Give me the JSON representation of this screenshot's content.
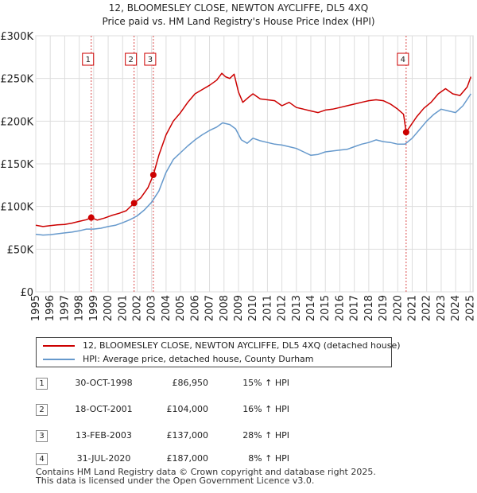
{
  "chart_data": {
    "type": "line",
    "title": "12, BLOOMESLEY CLOSE, NEWTON AYCLIFFE, DL5 4XQ",
    "subtitle": "Price paid vs. HM Land Registry's House Price Index (HPI)",
    "xlim": [
      1995,
      2025.2
    ],
    "ylim": [
      0,
      300000
    ],
    "x_ticks": [
      "1995",
      "1996",
      "1997",
      "1998",
      "1999",
      "2000",
      "2001",
      "2002",
      "2003",
      "2004",
      "2005",
      "2006",
      "2007",
      "2008",
      "2009",
      "2010",
      "2011",
      "2012",
      "2013",
      "2014",
      "2015",
      "2016",
      "2017",
      "2018",
      "2019",
      "2020",
      "2021",
      "2022",
      "2023",
      "2024",
      "2025"
    ],
    "y_ticks": [
      {
        "value": 0,
        "label": "£0"
      },
      {
        "value": 50000,
        "label": "£50K"
      },
      {
        "value": 100000,
        "label": "£100K"
      },
      {
        "value": 150000,
        "label": "£150K"
      },
      {
        "value": 200000,
        "label": "£200K"
      },
      {
        "value": 250000,
        "label": "£250K"
      },
      {
        "value": 300000,
        "label": "£300K"
      }
    ],
    "grid": true,
    "colors": {
      "property": "#cc0000",
      "hpi": "#6699cc",
      "marker_line": "#cc0000",
      "plot_bg": "#ffffff"
    },
    "series": [
      {
        "name": "12, BLOOMESLEY CLOSE, NEWTON AYCLIFFE, DL5 4XQ (detached house)",
        "color": "#cc0000",
        "points": [
          [
            1995.0,
            78000
          ],
          [
            1995.5,
            76500
          ],
          [
            1996.0,
            77500
          ],
          [
            1996.5,
            78500
          ],
          [
            1997.0,
            79000
          ],
          [
            1997.5,
            80500
          ],
          [
            1998.0,
            82500
          ],
          [
            1998.5,
            84500
          ],
          [
            1998.83,
            86950
          ],
          [
            1999.25,
            84000
          ],
          [
            1999.75,
            86500
          ],
          [
            2000.25,
            89500
          ],
          [
            2000.75,
            92000
          ],
          [
            2001.25,
            95000
          ],
          [
            2001.79,
            104000
          ],
          [
            2002.25,
            110000
          ],
          [
            2002.75,
            122000
          ],
          [
            2003.12,
            137000
          ],
          [
            2003.5,
            160000
          ],
          [
            2004.0,
            184000
          ],
          [
            2004.5,
            200000
          ],
          [
            2005.0,
            210000
          ],
          [
            2005.5,
            222000
          ],
          [
            2006.0,
            232000
          ],
          [
            2006.5,
            237000
          ],
          [
            2007.0,
            242000
          ],
          [
            2007.5,
            248000
          ],
          [
            2007.85,
            256000
          ],
          [
            2008.1,
            252000
          ],
          [
            2008.4,
            250000
          ],
          [
            2008.7,
            255000
          ],
          [
            2009.0,
            234000
          ],
          [
            2009.3,
            222000
          ],
          [
            2009.7,
            228000
          ],
          [
            2010.0,
            232000
          ],
          [
            2010.5,
            226000
          ],
          [
            2011.0,
            225000
          ],
          [
            2011.5,
            224000
          ],
          [
            2012.0,
            218000
          ],
          [
            2012.5,
            222000
          ],
          [
            2013.0,
            216000
          ],
          [
            2013.5,
            214000
          ],
          [
            2014.0,
            212000
          ],
          [
            2014.5,
            210000
          ],
          [
            2015.0,
            213000
          ],
          [
            2015.5,
            214000
          ],
          [
            2016.0,
            216000
          ],
          [
            2016.5,
            218000
          ],
          [
            2017.0,
            220000
          ],
          [
            2017.5,
            222000
          ],
          [
            2018.0,
            224000
          ],
          [
            2018.5,
            225000
          ],
          [
            2019.0,
            224000
          ],
          [
            2019.5,
            220000
          ],
          [
            2020.0,
            214000
          ],
          [
            2020.4,
            208000
          ],
          [
            2020.58,
            187000
          ],
          [
            2020.9,
            195000
          ],
          [
            2021.3,
            205000
          ],
          [
            2021.8,
            215000
          ],
          [
            2022.3,
            222000
          ],
          [
            2022.8,
            232000
          ],
          [
            2023.3,
            238000
          ],
          [
            2023.8,
            232000
          ],
          [
            2024.3,
            230000
          ],
          [
            2024.8,
            240000
          ],
          [
            2025.05,
            252000
          ]
        ]
      },
      {
        "name": "HPI: Average price, detached house, County Durham",
        "color": "#6699cc",
        "points": [
          [
            1995.0,
            67500
          ],
          [
            1995.5,
            66500
          ],
          [
            1996.0,
            67000
          ],
          [
            1996.5,
            68000
          ],
          [
            1997.0,
            69000
          ],
          [
            1997.5,
            70000
          ],
          [
            1998.0,
            71500
          ],
          [
            1998.5,
            73500
          ],
          [
            1999.0,
            73500
          ],
          [
            1999.5,
            74500
          ],
          [
            2000.0,
            76500
          ],
          [
            2000.5,
            78000
          ],
          [
            2001.0,
            81000
          ],
          [
            2001.5,
            84500
          ],
          [
            2002.0,
            89000
          ],
          [
            2002.5,
            96000
          ],
          [
            2003.0,
            105000
          ],
          [
            2003.5,
            118000
          ],
          [
            2004.0,
            140000
          ],
          [
            2004.5,
            155000
          ],
          [
            2005.0,
            163000
          ],
          [
            2005.5,
            171000
          ],
          [
            2006.0,
            178000
          ],
          [
            2006.5,
            184000
          ],
          [
            2007.0,
            189000
          ],
          [
            2007.5,
            193000
          ],
          [
            2007.9,
            198000
          ],
          [
            2008.4,
            196000
          ],
          [
            2008.8,
            191000
          ],
          [
            2009.2,
            178000
          ],
          [
            2009.6,
            174000
          ],
          [
            2010.0,
            180000
          ],
          [
            2010.5,
            177000
          ],
          [
            2011.0,
            175000
          ],
          [
            2011.5,
            173000
          ],
          [
            2012.0,
            172000
          ],
          [
            2012.5,
            170000
          ],
          [
            2013.0,
            168000
          ],
          [
            2013.5,
            164000
          ],
          [
            2014.0,
            160000
          ],
          [
            2014.5,
            161000
          ],
          [
            2015.0,
            164000
          ],
          [
            2015.5,
            165000
          ],
          [
            2016.0,
            166000
          ],
          [
            2016.5,
            167000
          ],
          [
            2017.0,
            170000
          ],
          [
            2017.5,
            173000
          ],
          [
            2018.0,
            175000
          ],
          [
            2018.5,
            178000
          ],
          [
            2019.0,
            176000
          ],
          [
            2019.5,
            175000
          ],
          [
            2020.0,
            173000
          ],
          [
            2020.5,
            173000
          ],
          [
            2021.0,
            180000
          ],
          [
            2021.5,
            190000
          ],
          [
            2022.0,
            200000
          ],
          [
            2022.5,
            208000
          ],
          [
            2023.0,
            214000
          ],
          [
            2023.5,
            212000
          ],
          [
            2024.0,
            210000
          ],
          [
            2024.5,
            218000
          ],
          [
            2025.05,
            232000
          ]
        ]
      }
    ],
    "sales": [
      {
        "label": "1",
        "x": 1998.83,
        "price": 86950
      },
      {
        "label": "2",
        "x": 2001.79,
        "price": 104000
      },
      {
        "label": "3",
        "x": 2003.12,
        "price": 137000
      },
      {
        "label": "4",
        "x": 2020.58,
        "price": 187000
      }
    ]
  },
  "legend": {
    "property": "12, BLOOMESLEY CLOSE, NEWTON AYCLIFFE, DL5 4XQ (detached house)",
    "hpi": "HPI: Average price, detached house, County Durham"
  },
  "sales_table": [
    {
      "num": "1",
      "date": "30-OCT-1998",
      "price": "£86,950",
      "hpi": "15% ↑ HPI"
    },
    {
      "num": "2",
      "date": "18-OCT-2001",
      "price": "£104,000",
      "hpi": "16% ↑ HPI"
    },
    {
      "num": "3",
      "date": "13-FEB-2003",
      "price": "£137,000",
      "hpi": "28% ↑ HPI"
    },
    {
      "num": "4",
      "date": "31-JUL-2020",
      "price": "£187,000",
      "hpi": "8% ↑ HPI"
    }
  ],
  "footer": {
    "line1": "Contains HM Land Registry data © Crown copyright and database right 2025.",
    "line2": "This data is licensed under the Open Government Licence v3.0."
  }
}
